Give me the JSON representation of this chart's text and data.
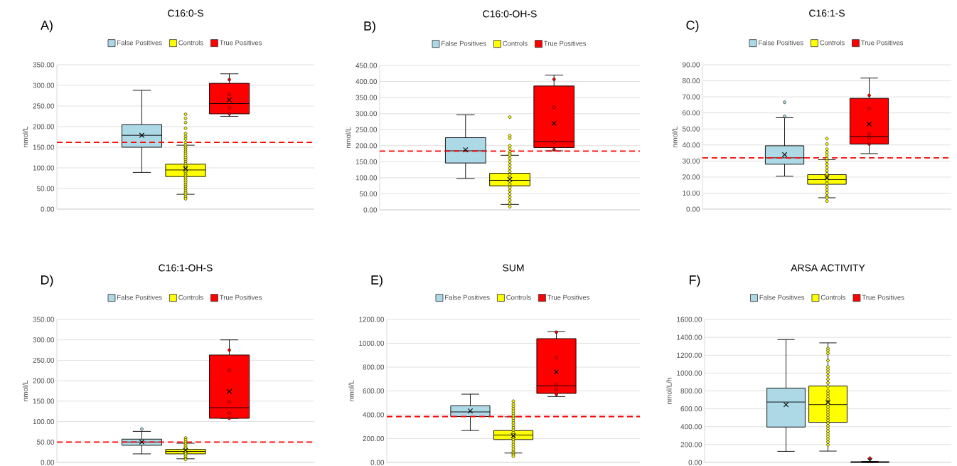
{
  "chart_data": [
    {
      "type": "box",
      "title": "C16:0-S",
      "ylabel": "nmol/L",
      "annotations": [
        "A)"
      ],
      "categories": [
        null
      ],
      "legend": "top",
      "grid": "y",
      "ylim": [
        0,
        350
      ],
      "yticks": [
        {
          "value": 0,
          "label": "0.00"
        },
        {
          "value": 50,
          "label": "50.00"
        },
        {
          "value": 100,
          "label": "100.00"
        },
        {
          "value": 150,
          "label": "150.00"
        },
        {
          "value": 200,
          "label": "200.00"
        },
        {
          "value": 250,
          "label": "250.00"
        },
        {
          "value": 300,
          "label": "300.00"
        },
        {
          "value": 350,
          "label": "350.00"
        }
      ],
      "ref_lines": [
        {
          "axis": "y",
          "value": 162,
          "color": "#ff0000",
          "line_style": "dashed"
        }
      ],
      "series": [
        {
          "name": "False Positives",
          "color": "#add8e6",
          "boxes": [
            {
              "low": 89,
              "q1": 150,
              "median": 179,
              "q3": 205,
              "high": 288,
              "mean": 179
            }
          ]
        },
        {
          "name": "Controls",
          "color": "#ffff00",
          "boxes": [
            {
              "low": 36,
              "q1": 79,
              "median": 95,
              "q3": 109,
              "high": 155,
              "mean": 98,
              "outliers": [
                230,
                220,
                210,
                196,
                183,
                176,
                170,
                162,
                155,
                150,
                145,
                140,
                135,
                130,
                125,
                120,
                115,
                110,
                105,
                100,
                95,
                90,
                85,
                80,
                75,
                70,
                65,
                60,
                55,
                50,
                45,
                40,
                36,
                30,
                25
              ]
            }
          ]
        },
        {
          "name": "True Positives",
          "color": "#ff0000",
          "boxes": [
            {
              "low": 225,
              "q1": 231,
              "median": 256,
              "q3": 305,
              "high": 328,
              "mean": 265,
              "outliers": [
                314,
                278,
                246,
                231
              ]
            }
          ]
        }
      ]
    },
    {
      "type": "box",
      "title": "C16:0-OH-S",
      "ylabel": "nmol/L",
      "annotations": [
        "B)"
      ],
      "categories": [
        null
      ],
      "legend": "top",
      "grid": "y",
      "ylim": [
        0,
        450
      ],
      "yticks": [
        {
          "value": 0,
          "label": "0.00"
        },
        {
          "value": 50,
          "label": "50.00"
        },
        {
          "value": 100,
          "label": "100.00"
        },
        {
          "value": 150,
          "label": "150.00"
        },
        {
          "value": 200,
          "label": "200.00"
        },
        {
          "value": 250,
          "label": "250.00"
        },
        {
          "value": 300,
          "label": "300.00"
        },
        {
          "value": 350,
          "label": "350.00"
        },
        {
          "value": 400,
          "label": "400.00"
        },
        {
          "value": 450,
          "label": "450.00"
        }
      ],
      "ref_lines": [
        {
          "axis": "y",
          "value": 183,
          "color": "#ff0000",
          "line_style": "dashed"
        }
      ],
      "series": [
        {
          "name": "False Positives",
          "color": "#add8e6",
          "boxes": [
            {
              "low": 98,
              "q1": 146,
              "median": 184,
              "q3": 225,
              "high": 296,
              "mean": 187
            }
          ]
        },
        {
          "name": "Controls",
          "color": "#ffff00",
          "boxes": [
            {
              "low": 17,
              "q1": 75,
              "median": 92,
              "q3": 114,
              "high": 170,
              "mean": 95,
              "outliers": [
                289,
                231,
                223,
                200,
                191,
                181,
                175,
                170,
                160,
                150,
                140,
                130,
                120,
                110,
                100,
                90,
                80,
                70,
                60,
                50,
                40,
                30,
                20,
                10
              ]
            }
          ]
        },
        {
          "name": "True Positives",
          "color": "#ff0000",
          "boxes": [
            {
              "low": 184,
              "q1": 194,
              "median": 213,
              "q3": 386,
              "high": 420,
              "mean": 270,
              "outliers": [
                407,
                320,
                211,
                188
              ]
            }
          ]
        }
      ]
    },
    {
      "type": "box",
      "title": "C16:1-S",
      "ylabel": "nmol/L",
      "annotations": [
        "C)"
      ],
      "categories": [
        null
      ],
      "legend": "top",
      "grid": "y",
      "ylim": [
        0,
        90
      ],
      "yticks": [
        {
          "value": 0,
          "label": "0.00"
        },
        {
          "value": 10,
          "label": "10.00"
        },
        {
          "value": 20,
          "label": "20.00"
        },
        {
          "value": 30,
          "label": "30.00"
        },
        {
          "value": 40,
          "label": "40.00"
        },
        {
          "value": 50,
          "label": "50.00"
        },
        {
          "value": 60,
          "label": "60.00"
        },
        {
          "value": 70,
          "label": "70.00"
        },
        {
          "value": 80,
          "label": "80.00"
        },
        {
          "value": 90,
          "label": "90.00"
        }
      ],
      "ref_lines": [
        {
          "axis": "y",
          "value": 32,
          "color": "#ff0000",
          "line_style": "dashed"
        }
      ],
      "series": [
        {
          "name": "False Positives",
          "color": "#add8e6",
          "boxes": [
            {
              "low": 20.6,
              "q1": 28,
              "median": 32,
              "q3": 39.5,
              "high": 57,
              "mean": 34,
              "outliers": [
                66.6,
                57.9
              ]
            }
          ]
        },
        {
          "name": "Controls",
          "color": "#ffff00",
          "boxes": [
            {
              "low": 7.1,
              "q1": 15.5,
              "median": 18.4,
              "q3": 21.5,
              "high": 30.8,
              "mean": 19.7,
              "outliers": [
                44,
                40.6,
                37.4,
                35.5,
                33.5,
                31.5,
                30,
                28,
                26,
                24,
                22,
                20,
                18,
                16,
                14,
                12,
                10,
                8,
                7,
                5
              ]
            }
          ]
        },
        {
          "name": "True Positives",
          "color": "#ff0000",
          "boxes": [
            {
              "low": 34.6,
              "q1": 40.6,
              "median": 45.3,
              "q3": 69.1,
              "high": 81.7,
              "mean": 53,
              "outliers": [
                70.9,
                62.8,
                46.8,
                44.5,
                40.6
              ]
            }
          ]
        }
      ]
    },
    {
      "type": "box",
      "title": "C16:1-OH-S",
      "ylabel": "nmol/L",
      "annotations": [
        "D)"
      ],
      "categories": [
        null
      ],
      "legend": "top",
      "grid": "y",
      "ylim": [
        0,
        350
      ],
      "yticks": [
        {
          "value": 0,
          "label": "0.00"
        },
        {
          "value": 50,
          "label": "50.00"
        },
        {
          "value": 100,
          "label": "100.00"
        },
        {
          "value": 150,
          "label": "150.00"
        },
        {
          "value": 200,
          "label": "200.00"
        },
        {
          "value": 250,
          "label": "250.00"
        },
        {
          "value": 300,
          "label": "300.00"
        },
        {
          "value": 350,
          "label": "350.00"
        }
      ],
      "ref_lines": [
        {
          "axis": "y",
          "value": 50,
          "color": "#ff0000",
          "line_style": "dashed"
        }
      ],
      "series": [
        {
          "name": "False Positives",
          "color": "#add8e6",
          "boxes": [
            {
              "low": 21,
              "q1": 42,
              "median": 50,
              "q3": 57,
              "high": 76,
              "mean": 50,
              "outliers": [
                82
              ]
            }
          ]
        },
        {
          "name": "Controls",
          "color": "#ffff00",
          "boxes": [
            {
              "low": 9,
              "q1": 21,
              "median": 27,
              "q3": 32,
              "high": 47,
              "mean": 30,
              "outliers": [
                60,
                55,
                50,
                45,
                40,
                35,
                25,
                20,
                15,
                10,
                7.5
              ]
            }
          ]
        },
        {
          "name": "True Positives",
          "color": "#ff0000",
          "boxes": [
            {
              "low": 108,
              "q1": 108,
              "median": 134,
              "q3": 263,
              "high": 300,
              "mean": 174,
              "outliers": [
                275,
                225,
                148,
                121,
                108
              ]
            }
          ]
        }
      ]
    },
    {
      "type": "box",
      "title": "SUM",
      "ylabel": "nmol/L",
      "annotations": [
        "E)"
      ],
      "categories": [
        null
      ],
      "legend": "top",
      "grid": "y",
      "ylim": [
        0,
        1200
      ],
      "yticks": [
        {
          "value": 0,
          "label": "0.00"
        },
        {
          "value": 200,
          "label": "200.00"
        },
        {
          "value": 400,
          "label": "400.00"
        },
        {
          "value": 600,
          "label": "600.00"
        },
        {
          "value": 800,
          "label": "800.00"
        },
        {
          "value": 1000,
          "label": "1000.00"
        },
        {
          "value": 1200,
          "label": "1200.00"
        }
      ],
      "ref_lines": [
        {
          "axis": "y",
          "value": 385,
          "color": "#ff0000",
          "line_style": "dashed"
        }
      ],
      "series": [
        {
          "name": "False Positives",
          "color": "#add8e6",
          "boxes": [
            {
              "low": 268,
              "q1": 385,
              "median": 424,
              "q3": 476,
              "high": 573,
              "mean": 432
            }
          ]
        },
        {
          "name": "Controls",
          "color": "#ffff00",
          "boxes": [
            {
              "low": 79,
              "q1": 192,
              "median": 230,
              "q3": 268,
              "high": 383,
              "mean": 224,
              "outliers": [
                514,
                490,
                470,
                450,
                430,
                410,
                390,
                370,
                350,
                330,
                310,
                290,
                270,
                250,
                230,
                210,
                190,
                170,
                150,
                130,
                110,
                90,
                79,
                65,
                52
              ]
            }
          ]
        },
        {
          "name": "True Positives",
          "color": "#ff0000",
          "boxes": [
            {
              "low": 553,
              "q1": 579,
              "median": 643,
              "q3": 1039,
              "high": 1099,
              "mean": 760,
              "outliers": [
                1093,
                879,
                657,
                611,
                571
              ]
            }
          ]
        }
      ]
    },
    {
      "type": "box",
      "title": "ARSA ACTIVITY",
      "ylabel": "nmol/L/h",
      "annotations": [
        "F)"
      ],
      "categories": [
        null
      ],
      "legend": "top",
      "grid": "y",
      "ylim": [
        0,
        1600
      ],
      "yticks": [
        {
          "value": 0,
          "label": "0.00"
        },
        {
          "value": 200,
          "label": "200.00"
        },
        {
          "value": 400,
          "label": "400.00"
        },
        {
          "value": 600,
          "label": "600.00"
        },
        {
          "value": 800,
          "label": "800.00"
        },
        {
          "value": 1000,
          "label": "1000.00"
        },
        {
          "value": 1200,
          "label": "1200.00"
        },
        {
          "value": 1400,
          "label": "1400.00"
        },
        {
          "value": 1600,
          "label": "1600.00"
        }
      ],
      "series": [
        {
          "name": "False Positives",
          "color": "#add8e6",
          "boxes": [
            {
              "low": 124,
              "q1": 396,
              "median": 676,
              "q3": 832,
              "high": 1375,
              "mean": 647
            }
          ]
        },
        {
          "name": "Controls",
          "color": "#ffff00",
          "boxes": [
            {
              "low": 127,
              "q1": 449,
              "median": 647,
              "q3": 855,
              "high": 1338,
              "mean": 673,
              "outliers": [
                1275,
                1250,
                1220,
                1140,
                1070,
                1040,
                1010,
                970,
                930,
                890,
                850,
                800,
                770,
                740,
                710,
                680,
                650,
                620,
                590,
                560,
                530,
                500,
                470,
                440,
                410,
                380,
                350,
                320,
                290,
                260,
                230,
                198
              ]
            }
          ]
        },
        {
          "name": "True Positives",
          "color": "#ff0000",
          "boxes": [
            {
              "low": 0,
              "q1": 0,
              "median": 4,
              "q3": 8,
              "high": 12,
              "mean": 20,
              "outliers": [
                48
              ]
            }
          ]
        }
      ]
    }
  ]
}
